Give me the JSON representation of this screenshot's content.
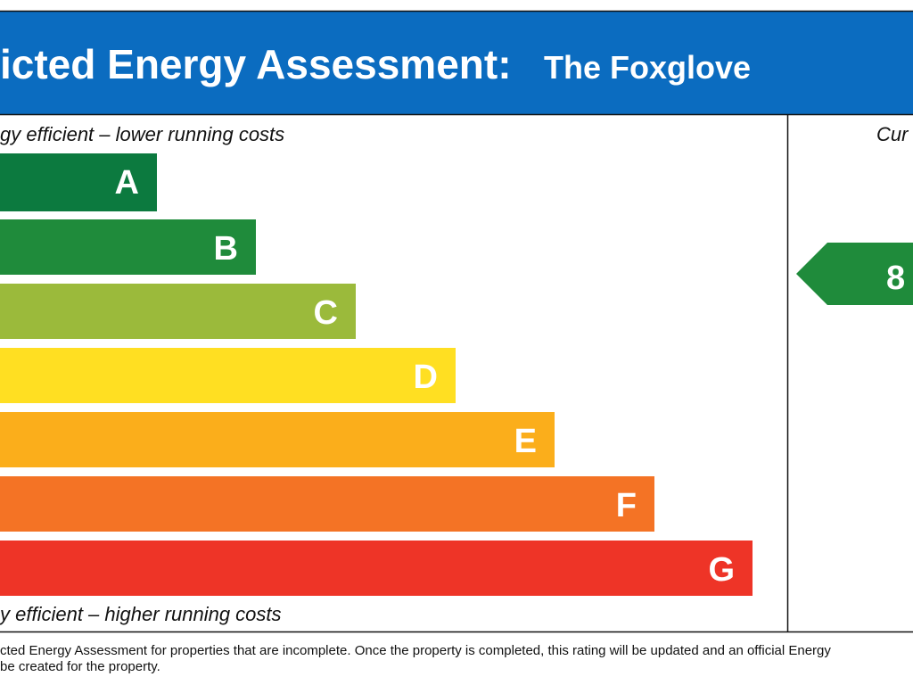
{
  "header": {
    "title": "icted Energy Assessment:",
    "subtitle": "The Foxglove"
  },
  "top_caption": "gy efficient – lower running costs",
  "bottom_caption": "y efficient – higher running costs",
  "bands": [
    {
      "letter": "A",
      "color": "#0c7a3f"
    },
    {
      "letter": "B",
      "color": "#1f8b3b"
    },
    {
      "letter": "C",
      "color": "#9bba3b"
    },
    {
      "letter": "D",
      "color": "#ffdf22"
    },
    {
      "letter": "E",
      "color": "#fbae1b"
    },
    {
      "letter": "F",
      "color": "#f47325"
    },
    {
      "letter": "G",
      "color": "#ee3427"
    }
  ],
  "current": {
    "header": "Cur",
    "rating": "8",
    "color": "#1f8b3b"
  },
  "footer": [
    "cted Energy Assessment for properties that are incomplete. Once the property is completed, this rating will be updated and an official Energy",
    "be created for the property."
  ]
}
